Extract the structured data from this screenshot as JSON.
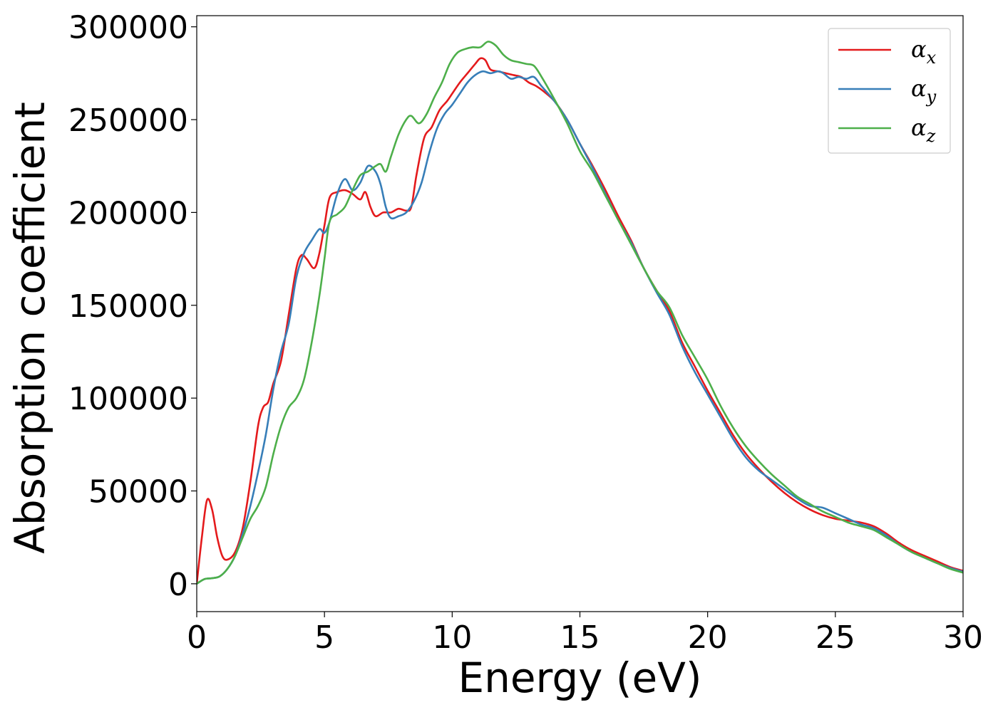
{
  "chart_data": {
    "type": "line",
    "xlabel": "Energy (eV)",
    "ylabel": "Absorption coefficient",
    "xlim": [
      0,
      30
    ],
    "ylim": [
      -15000,
      306000
    ],
    "xticks": [
      0,
      5,
      10,
      15,
      20,
      25,
      30
    ],
    "xtick_labels": [
      "0",
      "5",
      "10",
      "15",
      "20",
      "25",
      "30"
    ],
    "yticks": [
      0,
      50000,
      100000,
      150000,
      200000,
      250000,
      300000
    ],
    "ytick_labels": [
      "0",
      "50000",
      "100000",
      "150000",
      "200000",
      "250000",
      "300000"
    ],
    "grid": false,
    "legend_position": "top-right",
    "series": [
      {
        "name": "α",
        "name_sub": "x",
        "color": "#e41a1c",
        "points": [
          [
            0,
            0
          ],
          [
            0.2,
            25000
          ],
          [
            0.4,
            45000
          ],
          [
            0.6,
            40000
          ],
          [
            0.8,
            25000
          ],
          [
            1.0,
            15000
          ],
          [
            1.2,
            13000
          ],
          [
            1.5,
            17000
          ],
          [
            1.8,
            30000
          ],
          [
            2.1,
            55000
          ],
          [
            2.4,
            85000
          ],
          [
            2.6,
            95000
          ],
          [
            2.8,
            98000
          ],
          [
            3.0,
            108000
          ],
          [
            3.3,
            120000
          ],
          [
            3.6,
            145000
          ],
          [
            3.9,
            170000
          ],
          [
            4.1,
            177000
          ],
          [
            4.3,
            175000
          ],
          [
            4.6,
            170000
          ],
          [
            4.8,
            178000
          ],
          [
            5.0,
            193000
          ],
          [
            5.2,
            208000
          ],
          [
            5.5,
            211000
          ],
          [
            5.8,
            212000
          ],
          [
            6.1,
            210000
          ],
          [
            6.4,
            207000
          ],
          [
            6.6,
            211000
          ],
          [
            6.8,
            203000
          ],
          [
            7.0,
            198000
          ],
          [
            7.3,
            200000
          ],
          [
            7.6,
            200000
          ],
          [
            7.9,
            202000
          ],
          [
            8.2,
            201000
          ],
          [
            8.4,
            203000
          ],
          [
            8.6,
            220000
          ],
          [
            8.9,
            240000
          ],
          [
            9.2,
            246000
          ],
          [
            9.5,
            255000
          ],
          [
            9.8,
            260000
          ],
          [
            10.0,
            264000
          ],
          [
            10.3,
            270000
          ],
          [
            10.6,
            275000
          ],
          [
            10.9,
            280000
          ],
          [
            11.1,
            283000
          ],
          [
            11.3,
            282000
          ],
          [
            11.5,
            277000
          ],
          [
            11.8,
            276000
          ],
          [
            12.1,
            275000
          ],
          [
            12.4,
            274000
          ],
          [
            12.7,
            273000
          ],
          [
            13.0,
            270000
          ],
          [
            13.3,
            268000
          ],
          [
            13.6,
            265000
          ],
          [
            14.0,
            260000
          ],
          [
            14.5,
            250000
          ],
          [
            15.0,
            237000
          ],
          [
            15.5,
            225000
          ],
          [
            16.0,
            212000
          ],
          [
            16.5,
            198000
          ],
          [
            17.0,
            185000
          ],
          [
            17.5,
            170000
          ],
          [
            18.0,
            158000
          ],
          [
            18.5,
            147000
          ],
          [
            19.0,
            130000
          ],
          [
            19.5,
            117000
          ],
          [
            20.0,
            104000
          ],
          [
            20.5,
            92000
          ],
          [
            21.0,
            80000
          ],
          [
            21.5,
            70000
          ],
          [
            22.0,
            62000
          ],
          [
            22.5,
            55000
          ],
          [
            23.0,
            49000
          ],
          [
            23.5,
            44000
          ],
          [
            24.0,
            40000
          ],
          [
            24.5,
            37000
          ],
          [
            25.0,
            35000
          ],
          [
            25.5,
            34000
          ],
          [
            26.0,
            33000
          ],
          [
            26.5,
            31000
          ],
          [
            27.0,
            27000
          ],
          [
            27.5,
            22000
          ],
          [
            28.0,
            18000
          ],
          [
            28.5,
            15000
          ],
          [
            29.0,
            12000
          ],
          [
            29.5,
            9000
          ],
          [
            30.0,
            7000
          ]
        ]
      },
      {
        "name": "α",
        "name_sub": "y",
        "color": "#377eb8",
        "points": [
          [
            0,
            0
          ],
          [
            0.3,
            2500
          ],
          [
            0.6,
            3000
          ],
          [
            0.9,
            4000
          ],
          [
            1.2,
            8000
          ],
          [
            1.5,
            15000
          ],
          [
            1.8,
            27000
          ],
          [
            2.1,
            42000
          ],
          [
            2.4,
            60000
          ],
          [
            2.7,
            80000
          ],
          [
            3.0,
            105000
          ],
          [
            3.3,
            125000
          ],
          [
            3.6,
            140000
          ],
          [
            3.9,
            165000
          ],
          [
            4.2,
            178000
          ],
          [
            4.5,
            185000
          ],
          [
            4.8,
            191000
          ],
          [
            5.0,
            189000
          ],
          [
            5.2,
            195000
          ],
          [
            5.5,
            210000
          ],
          [
            5.8,
            218000
          ],
          [
            6.1,
            212000
          ],
          [
            6.4,
            216000
          ],
          [
            6.7,
            225000
          ],
          [
            7.0,
            222000
          ],
          [
            7.2,
            215000
          ],
          [
            7.4,
            203000
          ],
          [
            7.6,
            197000
          ],
          [
            7.9,
            198000
          ],
          [
            8.2,
            200000
          ],
          [
            8.5,
            206000
          ],
          [
            8.8,
            216000
          ],
          [
            9.1,
            232000
          ],
          [
            9.4,
            245000
          ],
          [
            9.7,
            253000
          ],
          [
            10.0,
            258000
          ],
          [
            10.3,
            264000
          ],
          [
            10.6,
            270000
          ],
          [
            10.9,
            274000
          ],
          [
            11.2,
            276000
          ],
          [
            11.5,
            275000
          ],
          [
            11.8,
            276000
          ],
          [
            12.0,
            275000
          ],
          [
            12.3,
            272000
          ],
          [
            12.6,
            273000
          ],
          [
            12.9,
            272000
          ],
          [
            13.2,
            273000
          ],
          [
            13.5,
            268000
          ],
          [
            14.0,
            260000
          ],
          [
            14.5,
            250000
          ],
          [
            15.0,
            237000
          ],
          [
            15.5,
            224000
          ],
          [
            16.0,
            210000
          ],
          [
            16.5,
            196000
          ],
          [
            17.0,
            184000
          ],
          [
            17.5,
            170000
          ],
          [
            18.0,
            157000
          ],
          [
            18.5,
            145000
          ],
          [
            19.0,
            128000
          ],
          [
            19.5,
            114000
          ],
          [
            20.0,
            102000
          ],
          [
            20.5,
            90000
          ],
          [
            21.0,
            78000
          ],
          [
            21.5,
            68000
          ],
          [
            22.0,
            61000
          ],
          [
            22.5,
            56000
          ],
          [
            23.0,
            51000
          ],
          [
            23.5,
            46000
          ],
          [
            24.0,
            42000
          ],
          [
            24.5,
            41000
          ],
          [
            25.0,
            38000
          ],
          [
            25.5,
            35000
          ],
          [
            26.0,
            32000
          ],
          [
            26.5,
            30000
          ],
          [
            27.0,
            26000
          ],
          [
            27.5,
            21000
          ],
          [
            28.0,
            17000
          ],
          [
            28.5,
            14000
          ],
          [
            29.0,
            11000
          ],
          [
            29.5,
            8500
          ],
          [
            30.0,
            6500
          ]
        ]
      },
      {
        "name": "α",
        "name_sub": "z",
        "color": "#4daf4a",
        "points": [
          [
            0,
            0
          ],
          [
            0.3,
            2500
          ],
          [
            0.6,
            3000
          ],
          [
            0.9,
            4000
          ],
          [
            1.2,
            8000
          ],
          [
            1.5,
            15000
          ],
          [
            1.8,
            25000
          ],
          [
            2.1,
            35000
          ],
          [
            2.4,
            42000
          ],
          [
            2.7,
            52000
          ],
          [
            3.0,
            70000
          ],
          [
            3.3,
            85000
          ],
          [
            3.6,
            95000
          ],
          [
            3.9,
            100000
          ],
          [
            4.2,
            110000
          ],
          [
            4.5,
            130000
          ],
          [
            4.8,
            155000
          ],
          [
            5.0,
            175000
          ],
          [
            5.2,
            195000
          ],
          [
            5.5,
            199000
          ],
          [
            5.8,
            203000
          ],
          [
            6.1,
            212000
          ],
          [
            6.4,
            220000
          ],
          [
            6.7,
            222000
          ],
          [
            7.0,
            225000
          ],
          [
            7.2,
            226000
          ],
          [
            7.4,
            222000
          ],
          [
            7.6,
            230000
          ],
          [
            7.9,
            242000
          ],
          [
            8.2,
            250000
          ],
          [
            8.4,
            252000
          ],
          [
            8.7,
            248000
          ],
          [
            9.0,
            253000
          ],
          [
            9.3,
            262000
          ],
          [
            9.6,
            270000
          ],
          [
            9.9,
            280000
          ],
          [
            10.2,
            286000
          ],
          [
            10.5,
            288000
          ],
          [
            10.8,
            289000
          ],
          [
            11.1,
            289000
          ],
          [
            11.4,
            292000
          ],
          [
            11.7,
            290000
          ],
          [
            12.0,
            285000
          ],
          [
            12.3,
            282000
          ],
          [
            12.6,
            281000
          ],
          [
            12.9,
            280000
          ],
          [
            13.2,
            279000
          ],
          [
            13.5,
            273000
          ],
          [
            14.0,
            261000
          ],
          [
            14.5,
            248000
          ],
          [
            15.0,
            233000
          ],
          [
            15.5,
            222000
          ],
          [
            16.0,
            209000
          ],
          [
            16.5,
            196000
          ],
          [
            17.0,
            183000
          ],
          [
            17.5,
            170000
          ],
          [
            18.0,
            158000
          ],
          [
            18.5,
            149000
          ],
          [
            19.0,
            134000
          ],
          [
            19.5,
            122000
          ],
          [
            20.0,
            110000
          ],
          [
            20.5,
            96000
          ],
          [
            21.0,
            84000
          ],
          [
            21.5,
            74000
          ],
          [
            22.0,
            66000
          ],
          [
            22.5,
            59000
          ],
          [
            23.0,
            53000
          ],
          [
            23.5,
            47000
          ],
          [
            24.0,
            43000
          ],
          [
            24.5,
            39000
          ],
          [
            25.0,
            36000
          ],
          [
            25.5,
            33000
          ],
          [
            26.0,
            31000
          ],
          [
            26.5,
            29000
          ],
          [
            27.0,
            25000
          ],
          [
            27.5,
            21000
          ],
          [
            28.0,
            17000
          ],
          [
            28.5,
            14000
          ],
          [
            29.0,
            11000
          ],
          [
            29.5,
            8000
          ],
          [
            30.0,
            6000
          ]
        ]
      }
    ]
  }
}
